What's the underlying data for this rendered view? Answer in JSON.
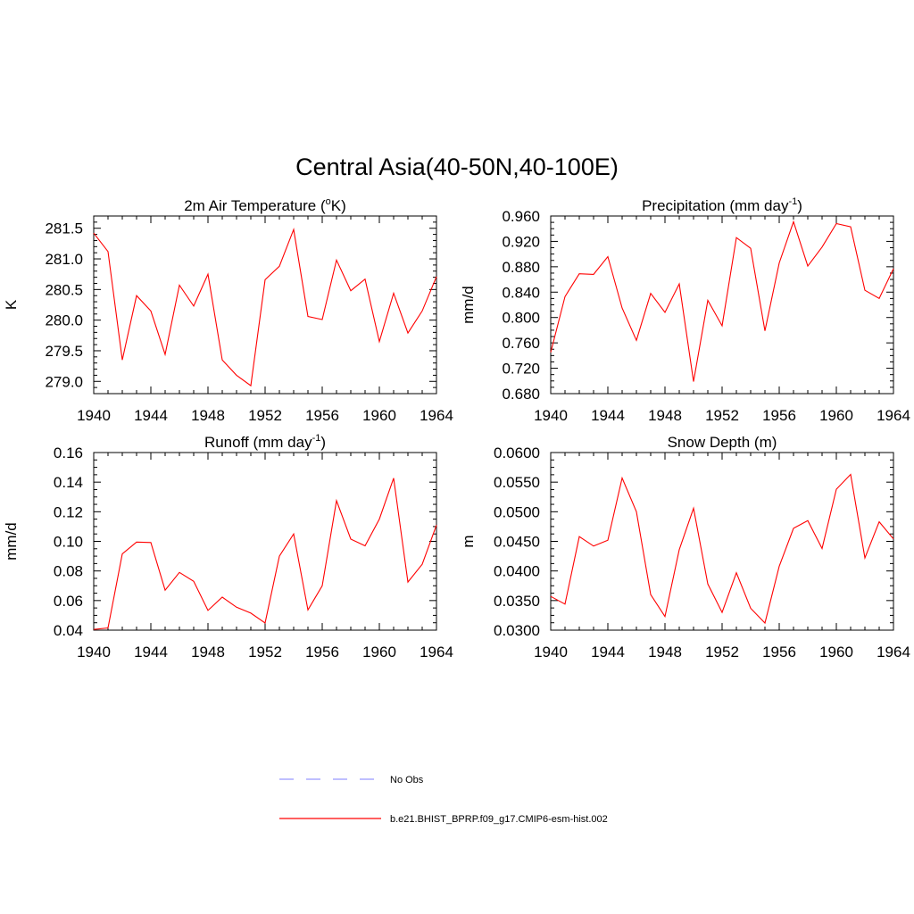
{
  "figure": {
    "title": "Central Asia(40-50N,40-100E)"
  },
  "legend": [
    {
      "label": "No Obs",
      "color": "#9999ff",
      "dash": "dashed"
    },
    {
      "label": "b.e21.BHIST_BPRP.f09_g17.CMIP6-esm-hist.002",
      "color": "#ff0000",
      "dash": "solid"
    }
  ],
  "chart_data": [
    {
      "type": "line",
      "title": "2m Air Temperature (",
      "title_sup": "o",
      "title_tail": "K)",
      "ylabel": "K",
      "xlim": [
        1940,
        1964
      ],
      "ylim": [
        278.8,
        281.7
      ],
      "xticks": [
        "1940",
        "1944",
        "1948",
        "1952",
        "1956",
        "1960",
        "1964"
      ],
      "yticks": [
        "279.0",
        "279.5",
        "280.0",
        "280.5",
        "281.0",
        "281.5"
      ],
      "series": [
        {
          "color": "#ff0000",
          "x": [
            1940,
            1941,
            1942,
            1943,
            1944,
            1945,
            1946,
            1947,
            1948,
            1949,
            1950,
            1951,
            1952,
            1953,
            1954,
            1955,
            1956,
            1957,
            1958,
            1959,
            1960,
            1961,
            1962,
            1963,
            1964
          ],
          "y": [
            281.42,
            281.12,
            279.35,
            280.4,
            280.15,
            279.44,
            280.57,
            280.23,
            280.75,
            279.35,
            279.1,
            278.93,
            280.66,
            280.88,
            281.48,
            280.06,
            280.01,
            280.98,
            280.48,
            280.67,
            279.65,
            280.44,
            279.79,
            280.15,
            280.71
          ]
        }
      ]
    },
    {
      "type": "line",
      "title": "Precipitation (mm day",
      "title_sup": "-1",
      "title_tail": ")",
      "ylabel": "mm/d",
      "xlim": [
        1940,
        1964
      ],
      "ylim": [
        0.68,
        0.96
      ],
      "xticks": [
        "1940",
        "1944",
        "1948",
        "1952",
        "1956",
        "1960",
        "1964"
      ],
      "yticks": [
        "0.680",
        "0.720",
        "0.760",
        "0.800",
        "0.840",
        "0.880",
        "0.920",
        "0.960"
      ],
      "series": [
        {
          "color": "#ff0000",
          "x": [
            1940,
            1941,
            1942,
            1943,
            1944,
            1945,
            1946,
            1947,
            1948,
            1949,
            1950,
            1951,
            1952,
            1953,
            1954,
            1955,
            1956,
            1957,
            1958,
            1959,
            1960,
            1961,
            1962,
            1963,
            1964
          ],
          "y": [
            0.745,
            0.833,
            0.869,
            0.868,
            0.896,
            0.815,
            0.764,
            0.838,
            0.808,
            0.853,
            0.699,
            0.827,
            0.787,
            0.926,
            0.909,
            0.779,
            0.886,
            0.951,
            0.881,
            0.911,
            0.948,
            0.943,
            0.843,
            0.83,
            0.877
          ]
        }
      ]
    },
    {
      "type": "line",
      "title": "Runoff (mm day",
      "title_sup": "-1",
      "title_tail": ")",
      "ylabel": "mm/d",
      "xlim": [
        1940,
        1964
      ],
      "ylim": [
        0.04,
        0.16
      ],
      "xticks": [
        "1940",
        "1944",
        "1948",
        "1952",
        "1956",
        "1960",
        "1964"
      ],
      "yticks": [
        "0.04",
        "0.06",
        "0.08",
        "0.10",
        "0.12",
        "0.14",
        "0.16"
      ],
      "series": [
        {
          "color": "#ff0000",
          "x": [
            1940,
            1941,
            1942,
            1943,
            1944,
            1945,
            1946,
            1947,
            1948,
            1949,
            1950,
            1951,
            1952,
            1953,
            1954,
            1955,
            1956,
            1957,
            1958,
            1959,
            1960,
            1961,
            1962,
            1963,
            1964
          ],
          "y": [
            0.0405,
            0.0415,
            0.0915,
            0.0995,
            0.0992,
            0.067,
            0.079,
            0.073,
            0.0533,
            0.0623,
            0.0555,
            0.0515,
            0.0449,
            0.09,
            0.105,
            0.0537,
            0.07,
            0.1275,
            0.1015,
            0.097,
            0.115,
            0.1427,
            0.0725,
            0.0845,
            0.111
          ]
        }
      ]
    },
    {
      "type": "line",
      "title": "Snow Depth (m)",
      "title_sup": "",
      "title_tail": "",
      "ylabel": "m",
      "xlim": [
        1940,
        1964
      ],
      "ylim": [
        0.03,
        0.06
      ],
      "xticks": [
        "1940",
        "1944",
        "1948",
        "1952",
        "1956",
        "1960",
        "1964"
      ],
      "yticks": [
        "0.0300",
        "0.0350",
        "0.0400",
        "0.0450",
        "0.0500",
        "0.0550",
        "0.0600"
      ],
      "series": [
        {
          "color": "#ff0000",
          "x": [
            1940,
            1941,
            1942,
            1943,
            1944,
            1945,
            1946,
            1947,
            1948,
            1949,
            1950,
            1951,
            1952,
            1953,
            1954,
            1955,
            1956,
            1957,
            1958,
            1959,
            1960,
            1961,
            1962,
            1963,
            1964
          ],
          "y": [
            0.0357,
            0.0344,
            0.0458,
            0.0442,
            0.0452,
            0.0557,
            0.05,
            0.036,
            0.0323,
            0.0436,
            0.0506,
            0.0378,
            0.033,
            0.0397,
            0.0337,
            0.0312,
            0.0408,
            0.0472,
            0.0485,
            0.0438,
            0.0538,
            0.0563,
            0.0422,
            0.0483,
            0.0454
          ]
        }
      ]
    }
  ]
}
